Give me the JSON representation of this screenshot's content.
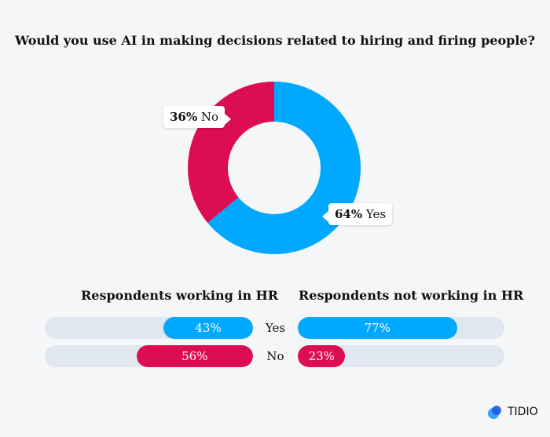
{
  "chart_data": [
    {
      "type": "pie",
      "title": "Would you use AI in making decisions related to hiring and firing people?",
      "slices": [
        {
          "label": "Yes",
          "value": 64,
          "display": "64%",
          "color": "#00a8ff"
        },
        {
          "label": "No",
          "value": 36,
          "display": "36%",
          "color": "#dc0d52"
        }
      ]
    },
    {
      "type": "bar",
      "orientation": "horizontal",
      "groups": [
        {
          "title": "Respondents working in HR",
          "direction": "right-to-left",
          "values": [
            {
              "label": "Yes",
              "value": 43,
              "display": "43%"
            },
            {
              "label": "No",
              "value": 56,
              "display": "56%"
            }
          ]
        },
        {
          "title": "Respondents not working in HR",
          "direction": "left-to-right",
          "values": [
            {
              "label": "Yes",
              "value": 77,
              "display": "77%"
            },
            {
              "label": "No",
              "value": 23,
              "display": "23%"
            }
          ]
        }
      ],
      "categories": [
        "Yes",
        "No"
      ],
      "colors": {
        "Yes": "#00a8ff",
        "No": "#dc0d52",
        "track": "#e1e7ef"
      },
      "xlim": [
        0,
        100
      ]
    }
  ],
  "brand": {
    "name": "TIDIO",
    "icon": "tidio-logo-icon"
  }
}
